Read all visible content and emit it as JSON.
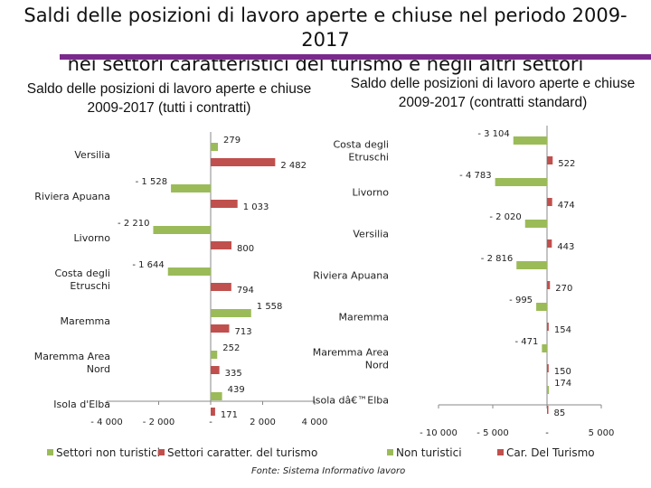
{
  "header": {
    "title_line1": "Saldi delle posizioni di lavoro aperte e chiuse nel periodo 2009-2017",
    "title_line2": "nei settori caratteristici del turismo e negli altri settori",
    "accent_color": "#7b2a8c"
  },
  "source": "Fonte: Sistema Informativo lavoro",
  "chart_data": [
    {
      "type": "bar",
      "orientation": "horizontal",
      "title": "Saldo delle posizioni di lavoro aperte e chiuse 2009-2017 (tutti i contratti)",
      "categories": [
        "Versilia",
        "Riviera Apuana",
        "Livorno",
        "Costa degli Etruschi",
        "Maremma",
        "Maremma Area Nord",
        "Isola d'Elba"
      ],
      "series": [
        {
          "name": "Settori non turistici",
          "color": "#9bbb59",
          "values": [
            279,
            -1528,
            -2210,
            -1644,
            1558,
            252,
            439
          ],
          "labels": [
            "279",
            "- 1 528",
            "- 2 210",
            "- 1 644",
            "1 558",
            "252",
            "439"
          ]
        },
        {
          "name": "Settori caratter. del turismo",
          "color": "#c0504d",
          "values": [
            2482,
            1033,
            800,
            794,
            713,
            335,
            171
          ],
          "labels": [
            "2 482",
            "1 033",
            "800",
            "794",
            "713",
            "335",
            "171"
          ]
        }
      ],
      "xlim": [
        -4000,
        4000
      ],
      "ticks": [
        -4000,
        -2000,
        0,
        2000,
        4000
      ],
      "tick_labels": [
        "- 4 000",
        "- 2 000",
        "-",
        "2 000",
        "4 000"
      ],
      "legend": [
        "Settori non turistici",
        "Settori caratter. del turismo"
      ]
    },
    {
      "type": "bar",
      "orientation": "horizontal",
      "title": "Saldo delle posizioni di lavoro aperte e chiuse 2009-2017 (contratti standard)",
      "categories": [
        "Costa degli Etruschi",
        "Livorno",
        "Versilia",
        "Riviera Apuana",
        "Maremma",
        "Maremma Area Nord",
        "Isola dâ€™Elba"
      ],
      "series": [
        {
          "name": "Non turistici",
          "color": "#9bbb59",
          "values": [
            -3104,
            -4783,
            -2020,
            -2816,
            -995,
            -471,
            174
          ],
          "labels": [
            "- 3 104",
            "- 4 783",
            "- 2 020",
            "- 2 816",
            "- 995",
            "- 471",
            "174"
          ]
        },
        {
          "name": "Car. Del Turismo",
          "color": "#c0504d",
          "values": [
            522,
            474,
            443,
            270,
            154,
            150,
            85
          ],
          "labels": [
            "522",
            "474",
            "443",
            "270",
            "154",
            "150",
            "85"
          ]
        }
      ],
      "xlim": [
        -10000,
        5000
      ],
      "ticks": [
        -10000,
        -5000,
        0,
        5000
      ],
      "tick_labels": [
        "- 10 000",
        "- 5 000",
        "-",
        "5 000"
      ],
      "legend": [
        "Non turistici",
        "Car. Del Turismo"
      ]
    }
  ]
}
